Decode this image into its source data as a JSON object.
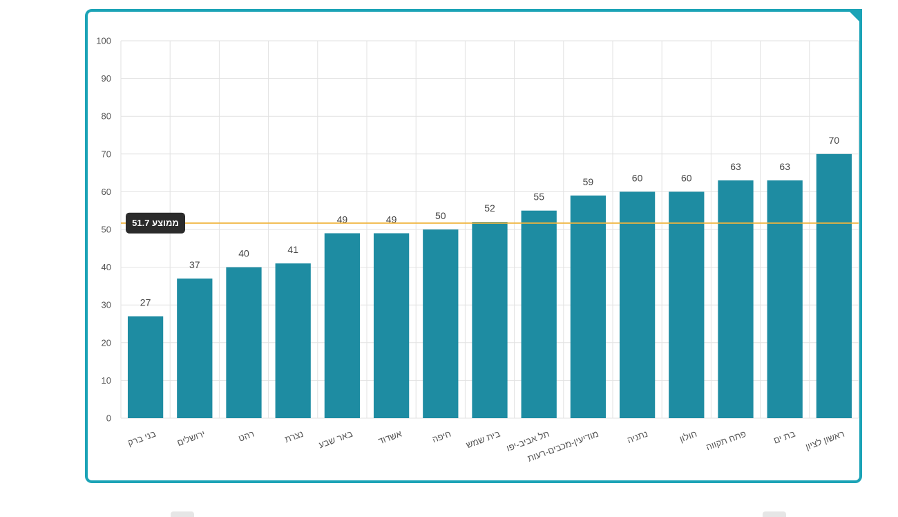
{
  "chart_data": {
    "type": "bar",
    "categories": [
      "בני ברק",
      "ירושלים",
      "רהט",
      "נצרת",
      "באר שבע",
      "אשדוד",
      "חיפה",
      "בית שמש",
      "תל אביב-יפו",
      "מודיעין-מכבים-רעות",
      "נתניה",
      "חולון",
      "פתח תקווה",
      "בת ים",
      "ראשון לציון"
    ],
    "values": [
      27,
      37,
      40,
      41,
      49,
      49,
      50,
      52,
      55,
      59,
      60,
      60,
      63,
      63,
      70
    ],
    "ylim": [
      0,
      100
    ],
    "yticks": [
      0,
      10,
      20,
      30,
      40,
      50,
      60,
      70,
      80,
      90,
      100
    ],
    "grid": true,
    "bar_color": "#1e8ca2",
    "reference_line": {
      "value": 51.7,
      "label": "ממוצע 51.7",
      "color": "#f0b43c"
    },
    "title": "",
    "xlabel": "",
    "ylabel": ""
  },
  "colors": {
    "card_border": "#1ba3b6",
    "grid": "#e2e2e2",
    "badge_bg": "#2b2b2b"
  }
}
